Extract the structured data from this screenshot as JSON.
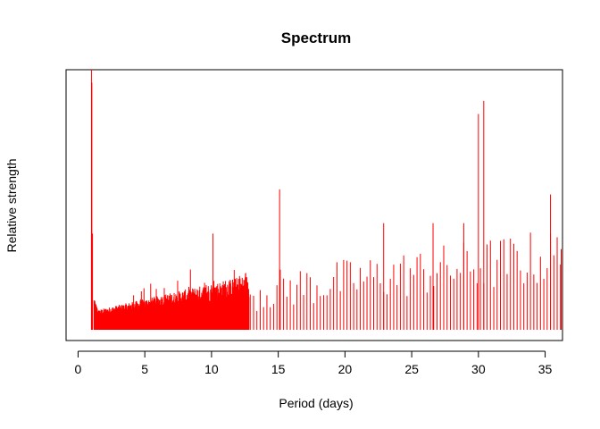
{
  "chart_data": {
    "type": "bar",
    "title": "Spectrum",
    "xlabel": "Period (days)",
    "ylabel": "Relative strength",
    "xlim": [
      -0.9,
      36.3
    ],
    "ylim": [
      0,
      1.0
    ],
    "x_ticks": [
      0,
      5,
      10,
      15,
      20,
      25,
      30,
      35
    ],
    "y_ticks_shown": false,
    "grid": false,
    "legend": "none",
    "color": "#ff0000",
    "dense_region": {
      "x_start": 1.2,
      "x_end": 12.8,
      "step": 0.02
    },
    "peaks": [
      {
        "x": 1.0,
        "y": 1.0
      },
      {
        "x": 1.03,
        "y": 0.95
      },
      {
        "x": 1.08,
        "y": 0.37
      },
      {
        "x": 10.1,
        "y": 0.37
      },
      {
        "x": 15.1,
        "y": 0.54
      },
      {
        "x": 22.9,
        "y": 0.41
      },
      {
        "x": 26.6,
        "y": 0.41
      },
      {
        "x": 28.9,
        "y": 0.41
      },
      {
        "x": 30.0,
        "y": 0.83
      },
      {
        "x": 30.4,
        "y": 0.88
      },
      {
        "x": 35.4,
        "y": 0.52
      },
      {
        "x": 36.2,
        "y": 0.31
      }
    ],
    "sparse_region": {
      "x_start": 12.9,
      "x_end": 36.3,
      "step": 0.25,
      "y_min_start": 0.07,
      "y_min_end": 0.17,
      "y_max_start": 0.22,
      "y_max_end": 0.4
    }
  }
}
